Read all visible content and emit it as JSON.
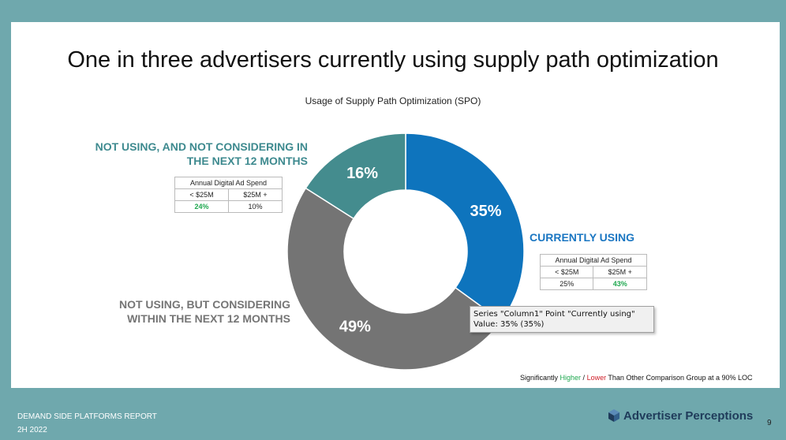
{
  "title": "One in three advertisers currently using supply path optimization",
  "chart_data": {
    "type": "pie",
    "donut": true,
    "title": "Usage of Supply Path Optimization (SPO)",
    "slices": [
      {
        "name": "Currently using",
        "label": "CURRENTLY USING",
        "value": 35,
        "display": "35%",
        "color": "#0e74bd"
      },
      {
        "name": "Not using, but considering within the next 12 months",
        "label_lines": [
          "NOT USING, BUT CONSIDERING",
          "WITHIN THE NEXT 12 MONTHS"
        ],
        "value": 49,
        "display": "49%",
        "color": "#747474"
      },
      {
        "name": "Not using, and not considering in the next 12 months",
        "label_lines": [
          "NOT USING, AND NOT CONSIDERING IN",
          "THE NEXT 12 MONTHS"
        ],
        "value": 16,
        "display": "16%",
        "color": "#448c8e"
      }
    ]
  },
  "spend_tables": {
    "not_considering": {
      "header": "Annual Digital Ad Spend",
      "col1": "< $25M",
      "col2": "$25M +",
      "val1": "24%",
      "val2": "10%"
    },
    "currently_using": {
      "header": "Annual Digital Ad Spend",
      "col1": "< $25M",
      "col2": "$25M +",
      "val1": "25%",
      "val2": "43%"
    }
  },
  "tooltip": {
    "line1": "Series \"Column1\" Point \"Currently using\"",
    "line2": "Value: 35% (35%)"
  },
  "footnote": {
    "prefix": "Significantly ",
    "higher": "Higher",
    "sep": " / ",
    "lower": "Lower",
    "suffix": " Than Other Comparison Group at a 90% LOC"
  },
  "footer": {
    "report": "DEMAND SIDE PLATFORMS REPORT",
    "period": "2H 2022",
    "brand": "Advertiser Perceptions",
    "page": "9"
  },
  "colors": {
    "background": "#6fa8ad",
    "higher": "#20a850",
    "lower": "#d0202a"
  }
}
